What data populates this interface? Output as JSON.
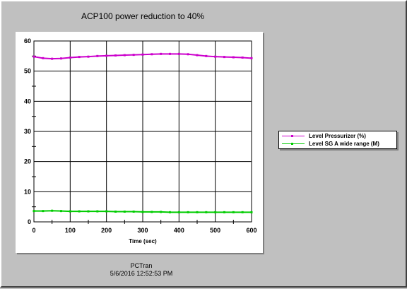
{
  "chart_data": {
    "type": "line",
    "title": "ACP100 power reduction to 40%",
    "xlabel": "Time (sec)",
    "ylabel": "",
    "xlim": [
      0,
      600
    ],
    "ylim": [
      0,
      60
    ],
    "xticks": [
      0,
      100,
      200,
      300,
      400,
      500,
      600
    ],
    "yticks": [
      0,
      10,
      20,
      30,
      40,
      50,
      60
    ],
    "grid": true,
    "legend_position": "right",
    "series": [
      {
        "name": "Level Pressurizer (%)",
        "color": "#cc00cc",
        "x": [
          0,
          25,
          50,
          75,
          100,
          125,
          150,
          175,
          200,
          225,
          250,
          275,
          300,
          325,
          350,
          375,
          400,
          425,
          450,
          475,
          500,
          525,
          550,
          575,
          600
        ],
        "y": [
          54.8,
          54.3,
          54.1,
          54.2,
          54.5,
          54.7,
          54.8,
          55.0,
          55.1,
          55.2,
          55.3,
          55.4,
          55.5,
          55.6,
          55.7,
          55.7,
          55.7,
          55.6,
          55.3,
          55.0,
          54.8,
          54.7,
          54.6,
          54.5,
          54.3
        ]
      },
      {
        "name": "Level SG A wide range (M)",
        "color": "#00cc00",
        "x": [
          0,
          25,
          50,
          75,
          100,
          125,
          150,
          175,
          200,
          225,
          250,
          275,
          300,
          325,
          350,
          375,
          400,
          425,
          450,
          475,
          500,
          525,
          550,
          575,
          600
        ],
        "y": [
          3.6,
          3.6,
          3.7,
          3.6,
          3.5,
          3.5,
          3.5,
          3.5,
          3.5,
          3.4,
          3.4,
          3.4,
          3.3,
          3.3,
          3.3,
          3.2,
          3.2,
          3.2,
          3.2,
          3.2,
          3.2,
          3.2,
          3.2,
          3.2,
          3.2
        ]
      }
    ]
  },
  "footer": {
    "program": "PCTran",
    "timestamp": "5/6/2016 12:52:53 PM"
  }
}
